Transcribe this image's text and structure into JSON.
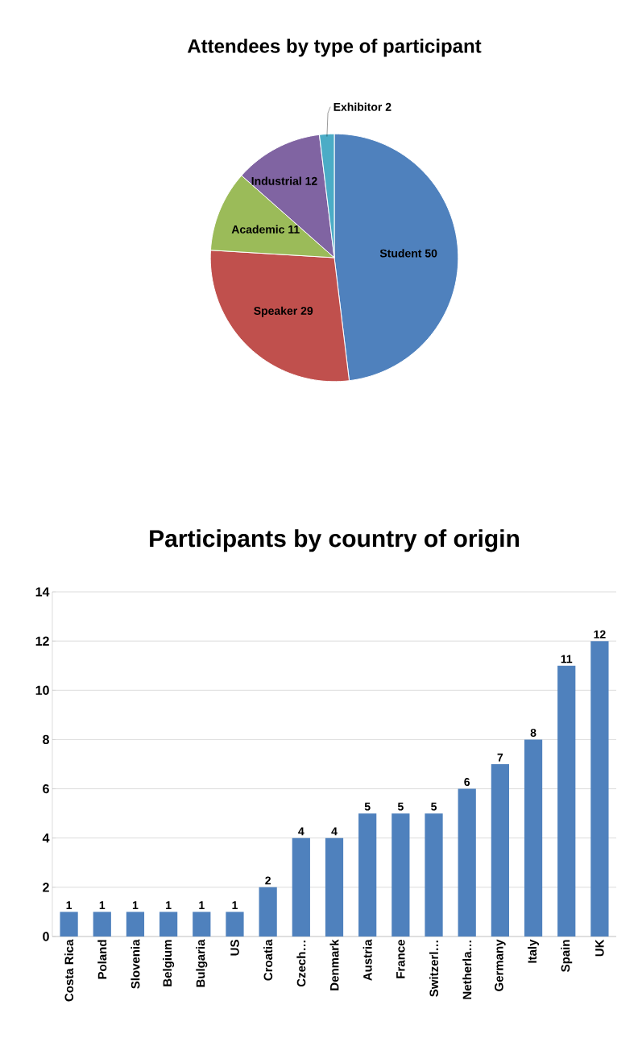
{
  "chart_data": [
    {
      "type": "pie",
      "title": "Attendees by type of participant",
      "categories": [
        "Student",
        "Speaker",
        "Academic",
        "Industrial",
        "Exhibitor"
      ],
      "values": [
        50,
        29,
        11,
        12,
        2
      ],
      "colors": [
        "#4f81bd",
        "#c0504d",
        "#9bbb59",
        "#8064a2",
        "#4bacc6"
      ],
      "value_labels": [
        "50",
        "29",
        "11",
        "12",
        "2"
      ]
    },
    {
      "type": "bar",
      "title": "Participants by country of origin",
      "categories": [
        "Costa Rica",
        "Poland",
        "Slovenia",
        "Belgium",
        "Bulgaria",
        "US",
        "Croatia",
        "Czech…",
        "Denmark",
        "Austria",
        "France",
        "Switzerl…",
        "Netherla…",
        "Germany",
        "Italy",
        "Spain",
        "UK"
      ],
      "values": [
        1,
        1,
        1,
        1,
        1,
        1,
        2,
        4,
        4,
        5,
        5,
        5,
        6,
        7,
        8,
        11,
        12
      ],
      "color": "#4f81bd",
      "ylim": [
        0,
        14
      ],
      "yticks": [
        0,
        2,
        4,
        6,
        8,
        10,
        12,
        14
      ],
      "grid": "y",
      "data_labels": true
    }
  ]
}
